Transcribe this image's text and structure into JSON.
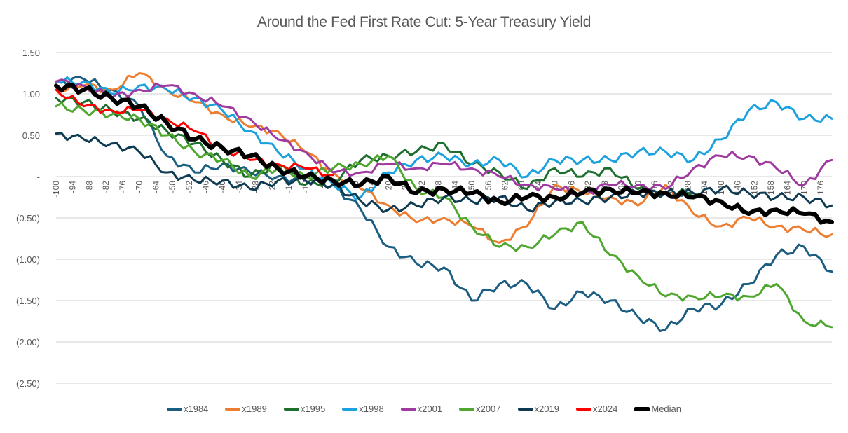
{
  "chart_data": {
    "type": "line",
    "title": "Around the Fed First Rate Cut: 5-Year Treasury Yield",
    "xlabel": "",
    "ylabel": "",
    "xlim": [
      -100,
      180
    ],
    "ylim": [
      -2.5,
      1.5
    ],
    "grid": true,
    "legend_position": "bottom",
    "y_ticks": [
      1.5,
      1.0,
      0.5,
      0,
      -0.5,
      -1.0,
      -1.5,
      -2.0,
      -2.5
    ],
    "y_tick_labels": [
      "1.50",
      "1.00",
      "0.50",
      "-",
      "(0.50)",
      "(1.00)",
      "(1.50)",
      "(2.00)",
      "(2.50)"
    ],
    "x_ticks": [
      -100,
      -94,
      -88,
      -82,
      -76,
      -70,
      -64,
      -58,
      -52,
      -46,
      -40,
      -34,
      -28,
      -22,
      -16,
      -10,
      -4,
      2,
      8,
      14,
      20,
      26,
      32,
      38,
      44,
      50,
      56,
      62,
      68,
      74,
      80,
      86,
      92,
      98,
      104,
      110,
      116,
      122,
      128,
      134,
      140,
      146,
      152,
      158,
      164,
      170,
      176
    ],
    "x": [
      -100,
      -90,
      -80,
      -70,
      -60,
      -50,
      -40,
      -30,
      -20,
      -10,
      0,
      10,
      20,
      30,
      40,
      50,
      60,
      70,
      80,
      90,
      100,
      110,
      120,
      130,
      140,
      150,
      160,
      170,
      180
    ],
    "series": [
      {
        "name": "x1984",
        "color": "#1b5e82",
        "values": [
          1.15,
          1.18,
          1.05,
          0.85,
          0.25,
          0.05,
          0.15,
          0.05,
          0.0,
          -0.05,
          -0.1,
          -0.4,
          -0.85,
          -1.05,
          -1.1,
          -1.5,
          -1.3,
          -1.3,
          -1.6,
          -1.4,
          -1.5,
          -1.7,
          -1.85,
          -1.6,
          -1.55,
          -1.3,
          -0.95,
          -0.85,
          -1.15
        ]
      },
      {
        "name": "x1989",
        "color": "#ed7d31",
        "values": [
          1.05,
          1.1,
          1.05,
          1.25,
          1.05,
          0.9,
          0.75,
          0.6,
          0.55,
          0.3,
          0.05,
          -0.15,
          -0.35,
          -0.55,
          -0.5,
          -0.6,
          -0.8,
          -0.6,
          -0.1,
          -0.2,
          -0.25,
          -0.35,
          -0.1,
          -0.45,
          -0.6,
          -0.5,
          -0.6,
          -0.65,
          -0.7
        ]
      },
      {
        "name": "x1995",
        "color": "#1e6e2e",
        "values": [
          0.95,
          0.9,
          0.8,
          0.7,
          0.55,
          0.4,
          0.2,
          0.0,
          0.15,
          -0.1,
          -0.05,
          0.2,
          0.25,
          0.3,
          0.4,
          0.15,
          0.05,
          -0.15,
          0.1,
          0.0,
          0.1,
          -0.15,
          -0.2,
          -0.2,
          null,
          null,
          null,
          null,
          null
        ]
      },
      {
        "name": "x1998",
        "color": "#1ba1dd",
        "values": [
          1.15,
          1.15,
          1.0,
          1.1,
          1.05,
          0.95,
          0.8,
          0.55,
          0.3,
          0.1,
          -0.1,
          -0.25,
          0.05,
          0.2,
          0.25,
          0.15,
          0.2,
          0.0,
          0.2,
          0.2,
          0.2,
          0.3,
          0.3,
          0.2,
          0.45,
          0.8,
          0.9,
          0.7,
          0.7
        ]
      },
      {
        "name": "x2001",
        "color": "#9e3aa0",
        "values": [
          1.15,
          1.1,
          0.95,
          1.05,
          1.1,
          1.0,
          0.85,
          0.7,
          0.45,
          0.3,
          0.05,
          0.05,
          0.15,
          0.1,
          0.15,
          0.1,
          0.0,
          -0.1,
          -0.15,
          -0.2,
          -0.1,
          -0.1,
          -0.15,
          0.1,
          0.25,
          0.25,
          0.1,
          -0.1,
          0.2
        ]
      },
      {
        "name": "x2007",
        "color": "#4ea72e",
        "values": [
          0.85,
          0.8,
          0.75,
          0.7,
          0.5,
          0.3,
          0.2,
          0.0,
          0.1,
          0.0,
          0.1,
          0.15,
          0.25,
          -0.15,
          -0.25,
          -0.6,
          -0.85,
          -0.85,
          -0.7,
          -0.55,
          -0.95,
          -1.2,
          -1.45,
          -1.45,
          -1.45,
          -1.45,
          -1.3,
          -1.75,
          -1.82
        ]
      },
      {
        "name": "x2019",
        "color": "#0e3b52",
        "values": [
          0.52,
          0.45,
          0.4,
          0.3,
          0.05,
          -0.05,
          -0.05,
          -0.15,
          -0.05,
          -0.05,
          -0.1,
          -0.3,
          -0.4,
          -0.35,
          -0.25,
          -0.3,
          -0.25,
          -0.4,
          -0.3,
          -0.3,
          -0.25,
          -0.2,
          -0.2,
          -0.2,
          -0.15,
          -0.2,
          -0.25,
          -0.25,
          -0.35
        ]
      },
      {
        "name": "x2024",
        "color": "#ff0000",
        "values": [
          1.05,
          0.85,
          0.8,
          0.8,
          0.7,
          0.55,
          0.35,
          0.2,
          0.15,
          0.1,
          0.02,
          null,
          null,
          null,
          null,
          null,
          null,
          null,
          null,
          null,
          null,
          null,
          null,
          null,
          null,
          null,
          null,
          null,
          null
        ]
      },
      {
        "name": "Median",
        "color": "#000000",
        "values": [
          1.1,
          1.05,
          0.95,
          0.85,
          0.65,
          0.45,
          0.35,
          0.25,
          0.1,
          0.0,
          -0.05,
          -0.1,
          0.0,
          -0.2,
          -0.15,
          -0.2,
          -0.3,
          -0.25,
          -0.25,
          -0.2,
          -0.15,
          -0.2,
          -0.2,
          -0.25,
          -0.3,
          -0.45,
          -0.4,
          -0.45,
          -0.55
        ]
      }
    ]
  }
}
